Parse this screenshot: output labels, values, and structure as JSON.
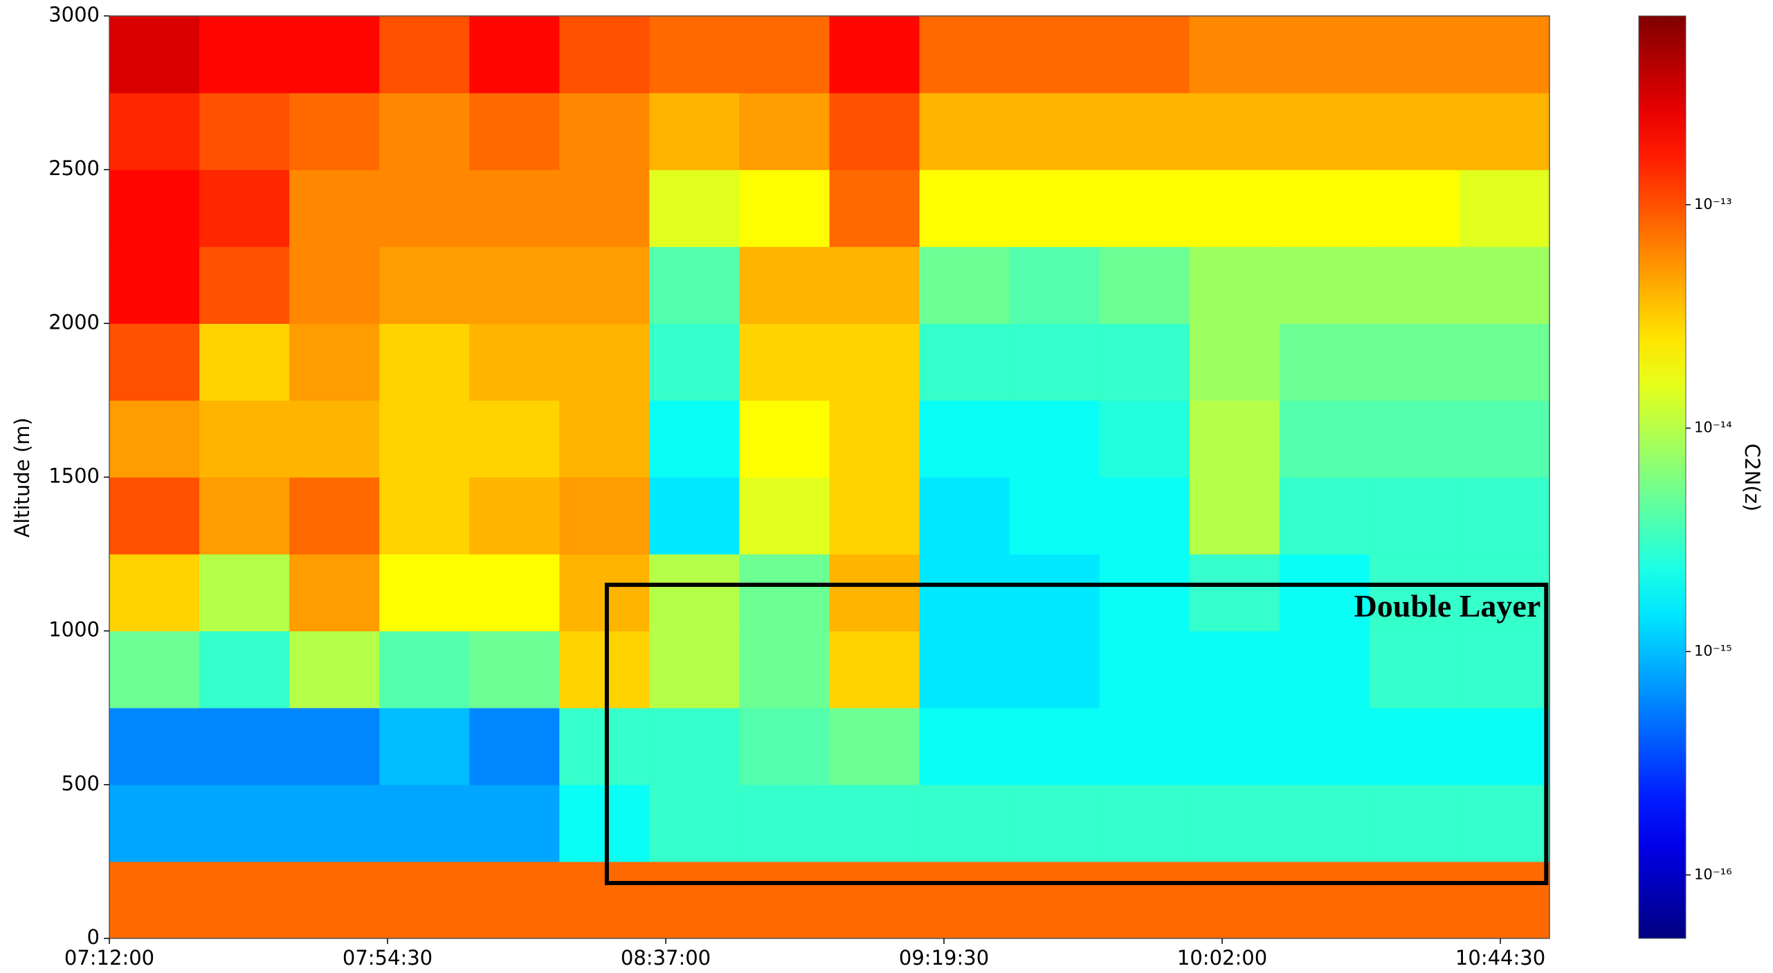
{
  "chart_data": {
    "type": "heatmap",
    "ylabel": "Altitude (m)",
    "colorbar_label": "C2N(z)",
    "xlim": [
      "07:12:00",
      "10:52:00"
    ],
    "xticks": [
      "07:12:00",
      "07:54:30",
      "08:37:00",
      "09:19:30",
      "10:02:00",
      "10:44:30"
    ],
    "ylim": [
      0,
      3000
    ],
    "yticks": [
      0,
      500,
      1000,
      1500,
      2000,
      2500,
      3000
    ],
    "colormap": "jet",
    "color_scale": "log",
    "clim": [
      5.2e-17,
      7e-13
    ],
    "cticks": [
      {
        "value": 1e-16,
        "label": "10⁻¹⁶"
      },
      {
        "value": 1e-15,
        "label": "10⁻¹⁵"
      },
      {
        "value": 1e-14,
        "label": "10⁻¹⁴"
      },
      {
        "value": 1e-13,
        "label": "10⁻¹³"
      }
    ],
    "z": [
      [
        8e-14,
        8e-14,
        8e-14,
        8e-14,
        8e-14,
        8e-14,
        8e-14,
        8e-14,
        8e-14,
        8e-14,
        8e-14,
        8e-14,
        8e-14,
        8e-14,
        8e-14,
        8e-14
      ],
      [
        8e-16,
        8e-16,
        8e-16,
        8e-16,
        8e-16,
        2e-15,
        3e-15,
        3e-15,
        3e-15,
        3e-15,
        3e-15,
        3e-15,
        3e-15,
        3e-15,
        3e-15,
        3e-15
      ],
      [
        6e-16,
        6e-16,
        6e-16,
        1e-15,
        6e-16,
        3e-15,
        3e-15,
        4e-15,
        5e-15,
        2e-15,
        2e-15,
        2e-15,
        2e-15,
        2e-15,
        2e-15,
        2e-15
      ],
      [
        5e-15,
        3e-15,
        1e-14,
        4e-15,
        5e-15,
        3e-14,
        1e-14,
        5e-15,
        3e-14,
        1.5e-15,
        1.5e-15,
        2e-15,
        2e-15,
        2e-15,
        3e-15,
        3e-15
      ],
      [
        3e-14,
        1e-14,
        5e-14,
        2e-14,
        2e-14,
        4e-14,
        1e-14,
        5e-15,
        4e-14,
        1.5e-15,
        1.5e-15,
        2e-15,
        3e-15,
        2e-15,
        3e-15,
        3e-15
      ],
      [
        1e-13,
        5e-14,
        8e-14,
        3e-14,
        4e-14,
        5e-14,
        1.5e-15,
        1.5e-14,
        3e-14,
        1.5e-15,
        2e-15,
        2e-15,
        1e-14,
        3e-15,
        3e-15,
        3e-15
      ],
      [
        5e-14,
        4e-14,
        4e-14,
        3e-14,
        3e-14,
        4e-14,
        2e-15,
        2e-14,
        3e-14,
        2e-15,
        2e-15,
        2.5e-15,
        1e-14,
        4e-15,
        4e-15,
        4e-15
      ],
      [
        1e-13,
        3e-14,
        5e-14,
        3e-14,
        4e-14,
        4e-14,
        3e-15,
        3e-14,
        3e-14,
        3e-15,
        3e-15,
        3e-15,
        8e-15,
        5e-15,
        5e-15,
        5e-15
      ],
      [
        2e-13,
        1e-13,
        6e-14,
        5e-14,
        5e-14,
        5e-14,
        4e-15,
        4e-14,
        4e-14,
        5e-15,
        4e-15,
        5e-15,
        8e-15,
        8e-15,
        8e-15,
        8e-15
      ],
      [
        2e-13,
        1.5e-13,
        6e-14,
        6e-14,
        6e-14,
        6e-14,
        1.5e-14,
        2e-14,
        8e-14,
        2e-14,
        2e-14,
        2e-14,
        2e-14,
        2e-14,
        2e-14,
        1.5e-14
      ],
      [
        1.5e-13,
        1e-13,
        8e-14,
        6e-14,
        8e-14,
        6e-14,
        4e-14,
        5e-14,
        1e-13,
        4e-14,
        4e-14,
        4e-14,
        4e-14,
        4e-14,
        4e-14,
        4e-14
      ],
      [
        3e-13,
        2e-13,
        2e-13,
        1e-13,
        2e-13,
        1e-13,
        8e-14,
        8e-14,
        2e-13,
        8e-14,
        8e-14,
        8e-14,
        6e-14,
        6e-14,
        6e-14,
        6e-14
      ]
    ],
    "annotation": {
      "text": "Double Layer",
      "x": [
        "08:28:00",
        "10:51:30"
      ],
      "y": [
        180,
        1150
      ]
    }
  }
}
